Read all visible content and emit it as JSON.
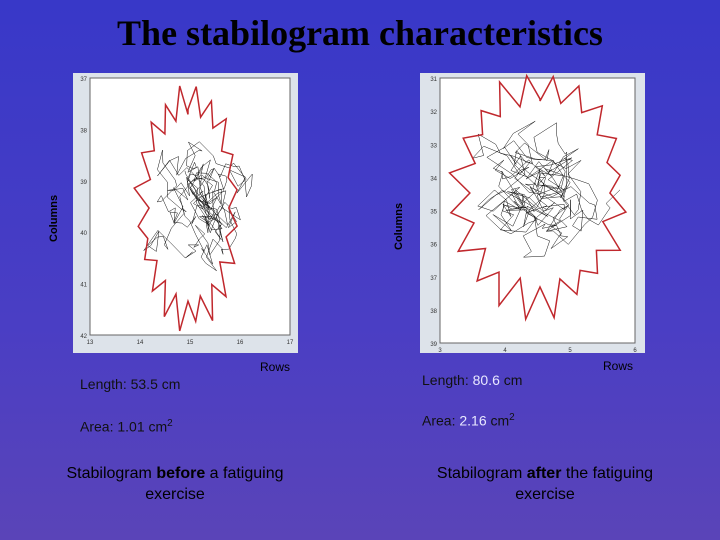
{
  "title": "The stabilogram characteristics",
  "panels": [
    {
      "y_axis_label": "Columns",
      "x_axis_label": "Rows",
      "yticks": [
        "37",
        "38",
        "39",
        "40",
        "41",
        "42"
      ],
      "xticks": [
        "13",
        "14",
        "15",
        "16",
        "17"
      ],
      "length": {
        "label": "Length:",
        "value": "53.5",
        "unit": "cm"
      },
      "area": {
        "label": "Area:",
        "value": "1.01",
        "unit": "cm",
        "power": "2"
      },
      "caption": {
        "before": "Stabilogram",
        "emphasis": "before",
        "after": "a fatiguing exercise"
      }
    },
    {
      "y_axis_label": "Columns",
      "x_axis_label": "Rows",
      "yticks": [
        "31",
        "32",
        "33",
        "34",
        "35",
        "36",
        "37",
        "38",
        "39"
      ],
      "xticks": [
        "3",
        "4",
        "5",
        "6"
      ],
      "length": {
        "label": "Length:",
        "value": "80.6",
        "unit": "cm"
      },
      "area": {
        "label": "Area:",
        "value": "2.16",
        "unit": "cm",
        "power": "2"
      },
      "caption": {
        "before": "Stabilogram",
        "emphasis": "after",
        "after": "the fatiguing exercise"
      }
    }
  ]
}
